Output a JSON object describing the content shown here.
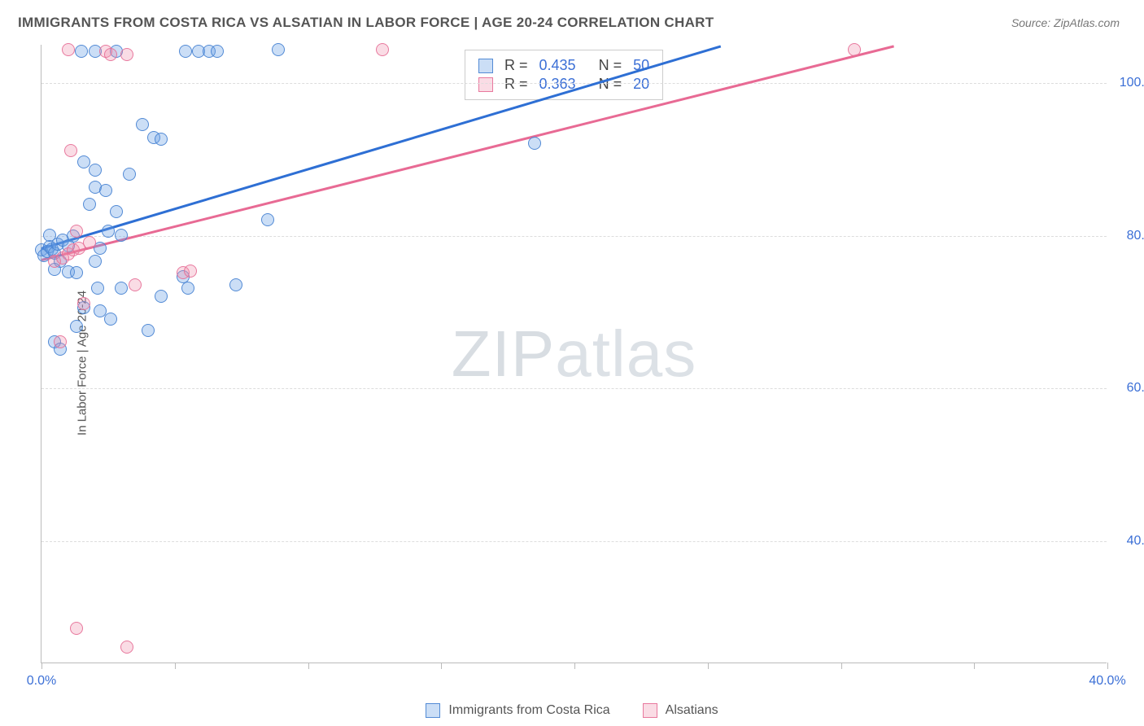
{
  "title": "IMMIGRANTS FROM COSTA RICA VS ALSATIAN IN LABOR FORCE | AGE 20-24 CORRELATION CHART",
  "source": "Source: ZipAtlas.com",
  "ylabel": "In Labor Force | Age 20-24",
  "watermark": {
    "zip": "ZIP",
    "atlas": "atlas"
  },
  "chart": {
    "type": "scatter",
    "xlim": [
      0,
      40
    ],
    "ylim": [
      24,
      105
    ],
    "ytick_labels": [
      "40.0%",
      "60.0%",
      "80.0%",
      "100.0%"
    ],
    "ytick_values": [
      40,
      60,
      80,
      100
    ],
    "xtick_labels": [
      "0.0%",
      "40.0%"
    ],
    "xtick_values": [
      0,
      40
    ],
    "xtick_marks": [
      0,
      5,
      10,
      15,
      20,
      25,
      30,
      35,
      40
    ],
    "grid_color": "#dddddd",
    "axis_color": "#bbbbbb",
    "background_color": "#ffffff",
    "marker_radius": 8,
    "series": [
      {
        "name": "Immigrants from Costa Rica",
        "color_fill": "rgba(106,160,230,0.35)",
        "color_stroke": "rgba(70,130,210,0.9)",
        "points": [
          [
            0.0,
            78
          ],
          [
            0.1,
            77.3
          ],
          [
            0.2,
            77.8
          ],
          [
            0.3,
            78.5
          ],
          [
            0.4,
            78.1
          ],
          [
            0.5,
            77.6
          ],
          [
            0.6,
            78.8
          ],
          [
            0.3,
            80.0
          ],
          [
            0.8,
            79.3
          ],
          [
            1.0,
            78.6
          ],
          [
            1.2,
            79.8
          ],
          [
            0.7,
            76.5
          ],
          [
            0.5,
            75.5
          ],
          [
            1.0,
            75.2
          ],
          [
            1.3,
            75.0
          ],
          [
            0.5,
            66.0
          ],
          [
            0.7,
            65.0
          ],
          [
            1.3,
            68.0
          ],
          [
            1.6,
            70.5
          ],
          [
            2.2,
            70.0
          ],
          [
            2.6,
            69.0
          ],
          [
            2.1,
            73.0
          ],
          [
            3.0,
            73.0
          ],
          [
            4.5,
            72.0
          ],
          [
            5.5,
            73.0
          ],
          [
            7.3,
            73.5
          ],
          [
            2.0,
            76.5
          ],
          [
            2.2,
            78.3
          ],
          [
            2.5,
            80.5
          ],
          [
            2.8,
            83.0
          ],
          [
            3.0,
            80.0
          ],
          [
            1.8,
            84.0
          ],
          [
            2.0,
            86.2
          ],
          [
            2.4,
            85.8
          ],
          [
            2.0,
            88.5
          ],
          [
            1.6,
            89.5
          ],
          [
            3.3,
            88.0
          ],
          [
            4.2,
            92.7
          ],
          [
            4.5,
            92.5
          ],
          [
            3.8,
            94.5
          ],
          [
            8.5,
            82.0
          ],
          [
            4.0,
            67.5
          ],
          [
            5.3,
            74.5
          ],
          [
            1.5,
            104
          ],
          [
            2.0,
            104
          ],
          [
            2.8,
            104
          ],
          [
            5.4,
            104
          ],
          [
            5.9,
            104
          ],
          [
            6.3,
            104
          ],
          [
            6.6,
            104
          ],
          [
            8.9,
            104.3
          ],
          [
            18.5,
            92.0
          ]
        ],
        "regression": {
          "x1": 0,
          "y1": 78.5,
          "x2": 25.5,
          "y2": 105
        },
        "line_color": "#2e6fd4",
        "R": 0.435,
        "N": 50
      },
      {
        "name": "Alsatians",
        "color_fill": "rgba(240,140,170,0.3)",
        "color_stroke": "rgba(230,110,150,0.9)",
        "points": [
          [
            0.5,
            76.5
          ],
          [
            0.8,
            77.0
          ],
          [
            1.0,
            77.5
          ],
          [
            1.2,
            78.0
          ],
          [
            1.4,
            78.3
          ],
          [
            1.8,
            79.0
          ],
          [
            1.3,
            80.5
          ],
          [
            1.1,
            91.0
          ],
          [
            0.7,
            66.0
          ],
          [
            1.6,
            71.0
          ],
          [
            3.5,
            73.5
          ],
          [
            5.3,
            75.0
          ],
          [
            5.6,
            75.3
          ],
          [
            1.0,
            104.3
          ],
          [
            2.4,
            104
          ],
          [
            2.6,
            103.6
          ],
          [
            3.2,
            103.6
          ],
          [
            12.8,
            104.3
          ],
          [
            30.5,
            104.3
          ],
          [
            1.3,
            28.5
          ],
          [
            3.2,
            26.0
          ]
        ],
        "regression": {
          "x1": 0,
          "y1": 77.0,
          "x2": 32.0,
          "y2": 105
        },
        "line_color": "#e86a94",
        "R": 0.363,
        "N": 20
      }
    ]
  },
  "stats_box": {
    "rows": [
      {
        "swatch": "blue",
        "r_label": "R =",
        "r_val": "0.435",
        "n_label": "N =",
        "n_val": "50"
      },
      {
        "swatch": "pink",
        "r_label": "R =",
        "r_val": "0.363",
        "n_label": "N =",
        "n_val": "20"
      }
    ]
  },
  "legend": [
    {
      "swatch": "blue",
      "label": "Immigrants from Costa Rica"
    },
    {
      "swatch": "pink",
      "label": "Alsatians"
    }
  ]
}
